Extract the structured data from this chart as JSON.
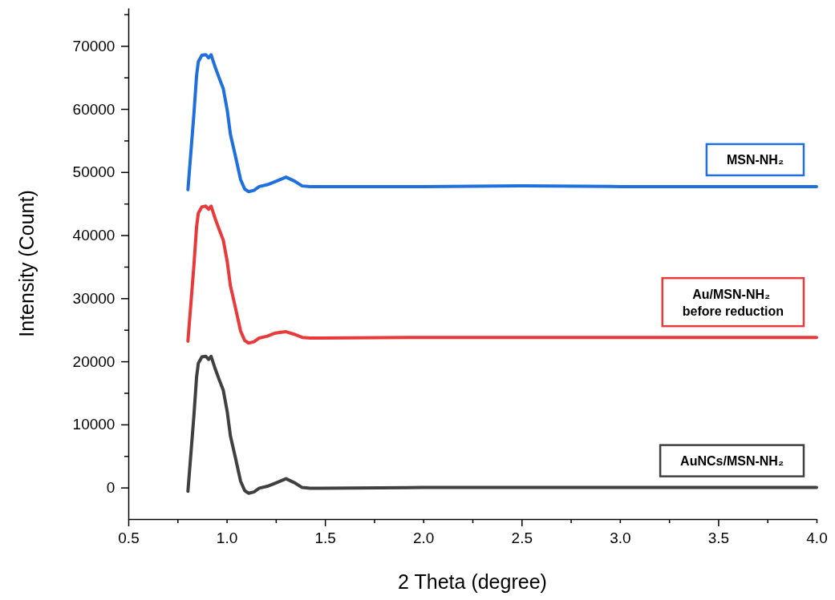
{
  "chart_data": {
    "type": "line",
    "xlabel": "2 Theta (degree)",
    "ylabel": "Intensity (Count)",
    "x": [
      0.803,
      0.819,
      0.833,
      0.847,
      0.856,
      0.874,
      0.894,
      0.908,
      0.921,
      0.942,
      0.962,
      0.983,
      1.003,
      1.019,
      1.044,
      1.071,
      1.092,
      1.112,
      1.139,
      1.166,
      1.207,
      1.248,
      1.302,
      1.343,
      1.384,
      1.425,
      1.479,
      2.0,
      2.5,
      3.0,
      3.5,
      4.0
    ],
    "series": [
      {
        "name": "MSN-NH₂",
        "color": "#1f6fdc",
        "values": [
          47200,
          53500,
          59000,
          65300,
          67500,
          68500,
          68600,
          68100,
          68600,
          66600,
          64900,
          63200,
          59800,
          56000,
          52600,
          48800,
          47300,
          46900,
          47100,
          47700,
          48000,
          48500,
          49200,
          48600,
          47800,
          47700,
          47700,
          47700,
          47800,
          47700,
          47700,
          47700
        ]
      },
      {
        "name": "Au/MSN-NH₂ before reduction",
        "color": "#e83a3a",
        "values": [
          23200,
          29500,
          35000,
          41300,
          43500,
          44500,
          44600,
          44100,
          44600,
          42600,
          40900,
          39200,
          35800,
          32000,
          28600,
          24800,
          23300,
          22900,
          23100,
          23700,
          24000,
          24500,
          24700,
          24300,
          23800,
          23700,
          23700,
          23800,
          23800,
          23800,
          23800,
          23800
        ]
      },
      {
        "name": "AuNCs/MSN-NH₂",
        "color": "#404040",
        "values": [
          -600,
          5700,
          11200,
          17500,
          19700,
          20700,
          20800,
          20300,
          20800,
          18800,
          17100,
          15400,
          12000,
          8200,
          4800,
          1000,
          -500,
          -900,
          -700,
          -100,
          200,
          700,
          1400,
          800,
          0,
          -100,
          -100,
          0,
          0,
          0,
          0,
          0
        ]
      }
    ],
    "xlim": [
      0.5,
      4.0
    ],
    "xticks": [
      0.5,
      {
        "value": 0.75,
        "label": null
      },
      {
        "value": 1,
        "label": "1.0"
      },
      {
        "value": 1.25,
        "label": null
      },
      1.5,
      {
        "value": 1.75,
        "label": null
      },
      {
        "value": 2,
        "label": "2.0"
      },
      {
        "value": 2.25,
        "label": null
      },
      2.5,
      {
        "value": 2.75,
        "label": null
      },
      {
        "value": 3,
        "label": "3.0"
      },
      {
        "value": 3.25,
        "label": null
      },
      3.5,
      {
        "value": 3.75,
        "label": null
      },
      {
        "value": 4,
        "label": "4.0"
      }
    ],
    "ylim": [
      -5000,
      76000
    ],
    "yticks": [
      0,
      {
        "value": 5000,
        "label": null
      },
      10000,
      {
        "value": 15000,
        "label": null
      },
      20000,
      {
        "value": 25000,
        "label": null
      },
      30000,
      {
        "value": 35000,
        "label": null
      },
      40000,
      {
        "value": 45000,
        "label": null
      },
      50000,
      {
        "value": 55000,
        "label": null
      },
      60000,
      {
        "value": 65000,
        "label": null
      },
      70000,
      {
        "value": 75000,
        "label": null
      }
    ],
    "grid": false,
    "legend": "right",
    "marker": "none",
    "line_style": "solid"
  }
}
